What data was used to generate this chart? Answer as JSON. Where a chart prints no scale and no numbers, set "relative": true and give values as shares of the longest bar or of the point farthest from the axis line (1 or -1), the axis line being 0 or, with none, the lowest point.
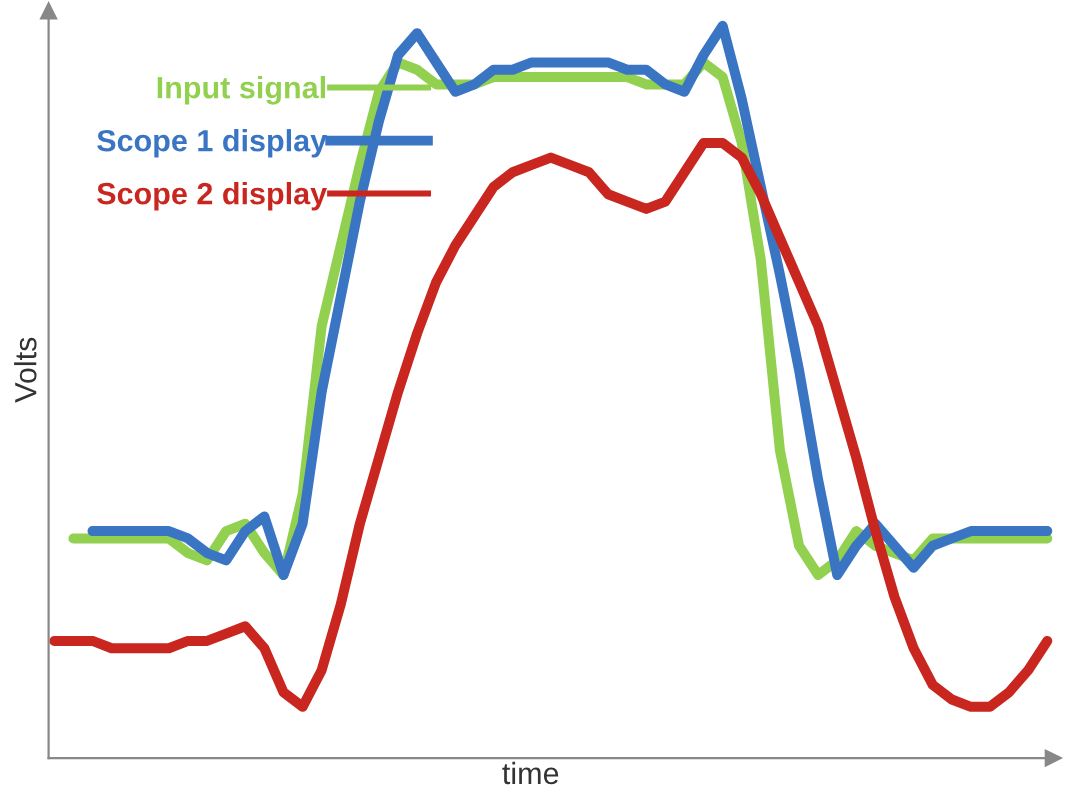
{
  "chart_data": {
    "type": "line",
    "relative": true,
    "xlabel": "time",
    "ylabel": "Volts",
    "legend": "top left",
    "grid": false,
    "marker": "none",
    "line_style": "solid",
    "categories": [
      null,
      null,
      null,
      null,
      null,
      null,
      null,
      null,
      null,
      null,
      null,
      null,
      null,
      null,
      null,
      null,
      null,
      null,
      null,
      null,
      null,
      null,
      null,
      null,
      null,
      null,
      null,
      null,
      null,
      null,
      null,
      null,
      null,
      null,
      null,
      null,
      null,
      null,
      null,
      null,
      null,
      null,
      null,
      null,
      null,
      null,
      null,
      null,
      null,
      null,
      null,
      null,
      null
    ],
    "series": [
      {
        "name": "Input signal",
        "color": "#92d050",
        "values": [
          null,
          0.3,
          0.3,
          0.3,
          0.3,
          0.3,
          0.3,
          0.28,
          0.27,
          0.31,
          0.32,
          0.28,
          0.25,
          0.36,
          0.59,
          0.7,
          0.81,
          0.91,
          0.95,
          0.94,
          0.92,
          0.92,
          0.92,
          0.93,
          0.93,
          0.93,
          0.93,
          0.93,
          0.93,
          0.93,
          0.93,
          0.92,
          0.92,
          0.92,
          0.95,
          0.93,
          0.84,
          0.68,
          0.42,
          0.29,
          0.25,
          0.27,
          0.31,
          0.29,
          0.28,
          0.27,
          0.3,
          0.3,
          0.3,
          0.3,
          0.3,
          0.3,
          0.3
        ]
      },
      {
        "name": "Scope 1 display",
        "color": "#3a75c4",
        "values": [
          null,
          null,
          0.31,
          0.31,
          0.31,
          0.31,
          0.31,
          0.3,
          0.28,
          0.27,
          0.31,
          0.33,
          0.25,
          0.32,
          0.5,
          0.63,
          0.76,
          0.87,
          0.96,
          0.99,
          0.95,
          0.91,
          0.92,
          0.94,
          0.94,
          0.95,
          0.95,
          0.95,
          0.95,
          0.95,
          0.94,
          0.94,
          0.92,
          0.91,
          0.96,
          1.0,
          0.9,
          0.78,
          0.66,
          0.53,
          0.38,
          0.25,
          0.29,
          0.32,
          0.29,
          0.26,
          0.29,
          0.3,
          0.31,
          0.31,
          0.31,
          0.31,
          0.31
        ]
      },
      {
        "name": "Scope 2 display",
        "color": "#c8261e",
        "values": [
          0.16,
          0.16,
          0.16,
          0.15,
          0.15,
          0.15,
          0.15,
          0.16,
          0.16,
          0.17,
          0.18,
          0.15,
          0.09,
          0.07,
          0.12,
          0.21,
          0.32,
          0.41,
          0.5,
          0.58,
          0.65,
          0.7,
          0.74,
          0.78,
          0.8,
          0.81,
          0.82,
          0.81,
          0.8,
          0.77,
          0.76,
          0.75,
          0.76,
          0.8,
          0.84,
          0.84,
          0.82,
          0.77,
          0.71,
          0.65,
          0.59,
          0.5,
          0.41,
          0.31,
          0.22,
          0.15,
          0.1,
          0.08,
          0.07,
          0.07,
          0.09,
          0.12,
          0.16
        ]
      }
    ]
  }
}
